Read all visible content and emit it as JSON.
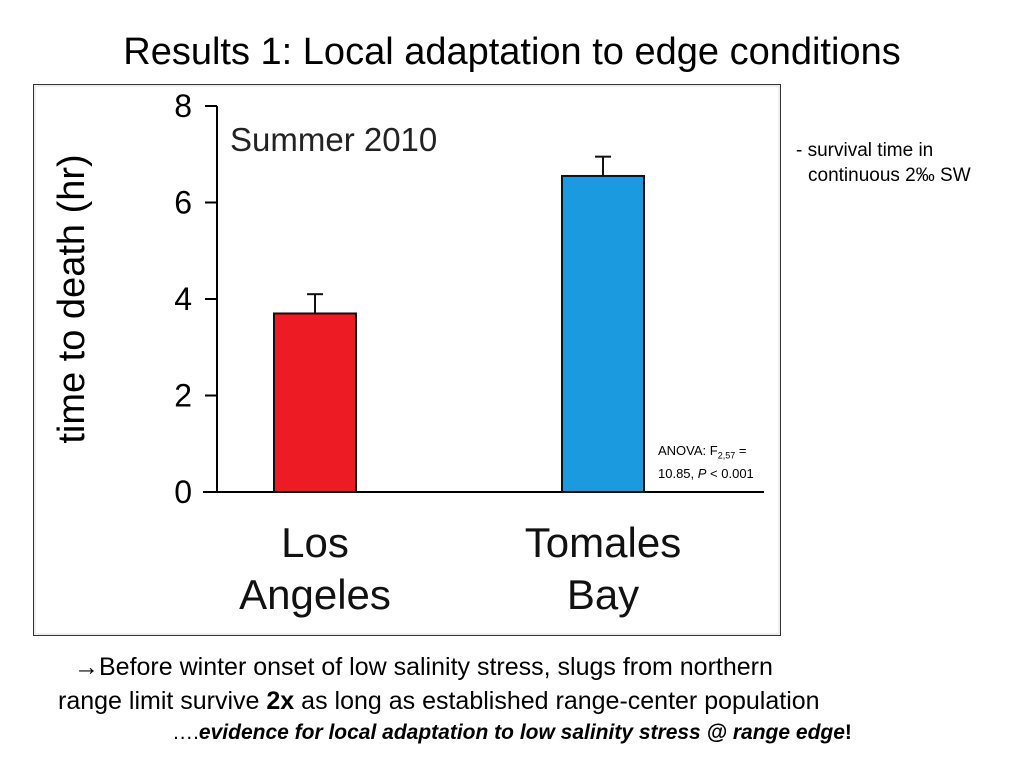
{
  "title": "Results 1: Local adaptation to edge conditions",
  "side_note": {
    "line1": "- survival time in",
    "line2": "continuous 2‰ SW"
  },
  "anova": {
    "prefix": "ANOVA: F",
    "subscript": "2,57",
    "suffix": " =",
    "line2_start": "10.85, ",
    "p": "P",
    "line2_end": " < 0.001"
  },
  "conclusion": {
    "arrow": "→",
    "line1": "Before winter onset of low salinity stress, slugs from northern",
    "line2_pre": "range limit survive ",
    "line2_bold": "2x",
    "line2_post": " as long as established range-center population",
    "line3_pre": "….",
    "line3_em": "evidence for local adaptation to low salinity stress @ range edge",
    "line3_post": "!"
  },
  "chart_data": {
    "type": "bar",
    "title": "Summer 2010",
    "xlabel": "",
    "ylabel": "time to death (hr)",
    "categories": [
      [
        "Los",
        "Angeles"
      ],
      [
        "Tomales",
        "Bay"
      ]
    ],
    "values": [
      3.7,
      6.55
    ],
    "errors": [
      0.4,
      0.4
    ],
    "colors": [
      "#ed1c24",
      "#1b9ae0"
    ],
    "ylim": [
      0,
      8
    ],
    "yticks": [
      0,
      2,
      4,
      6,
      8
    ],
    "grid": false
  }
}
